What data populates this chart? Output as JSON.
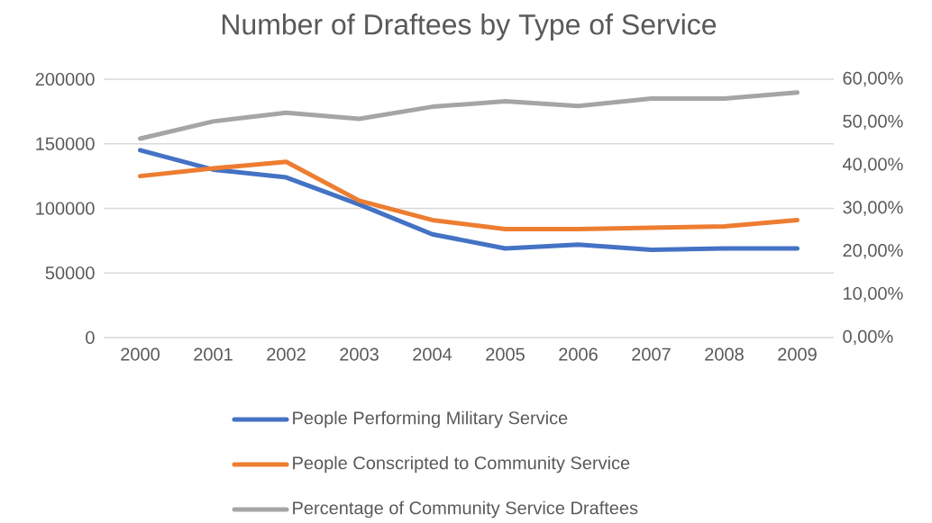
{
  "chart_data": {
    "type": "line",
    "title": "Number of Draftees by Type of Service",
    "categories": [
      "2000",
      "2001",
      "2002",
      "2003",
      "2004",
      "2005",
      "2006",
      "2007",
      "2008",
      "2009"
    ],
    "series": [
      {
        "name": "People Performing Military Service",
        "color": "#4472c4",
        "values": [
          145000,
          130000,
          124000,
          103000,
          80000,
          69000,
          72000,
          68000,
          69000,
          69000
        ]
      },
      {
        "name": "People Conscripted to Community Service",
        "color": "#ed7d31",
        "values": [
          125000,
          131000,
          136000,
          106000,
          91000,
          84000,
          84000,
          85000,
          86000,
          91000
        ]
      },
      {
        "name": "Percentage of Community Service Draftees",
        "color": "#a5a5a5",
        "axis": "y2",
        "values": [
          46.2,
          50.2,
          52.2,
          50.8,
          53.6,
          54.9,
          53.8,
          55.5,
          55.5,
          56.9
        ]
      }
    ],
    "ylim": [
      0,
      200000
    ],
    "yticks": [
      0,
      50000,
      100000,
      150000,
      200000
    ],
    "y2lim": [
      0,
      60
    ],
    "y2ticks": [
      {
        "value": 0,
        "label": "0,00%"
      },
      {
        "value": 10,
        "label": "10,00%"
      },
      {
        "value": 20,
        "label": "20,00%"
      },
      {
        "value": 30,
        "label": "30,00%"
      },
      {
        "value": 40,
        "label": "40,00%"
      },
      {
        "value": 50,
        "label": "50,00%"
      },
      {
        "value": 60,
        "label": "60,00%"
      }
    ],
    "grid": "y",
    "legend": "bottom",
    "marker": "none",
    "line_style": "solid"
  }
}
